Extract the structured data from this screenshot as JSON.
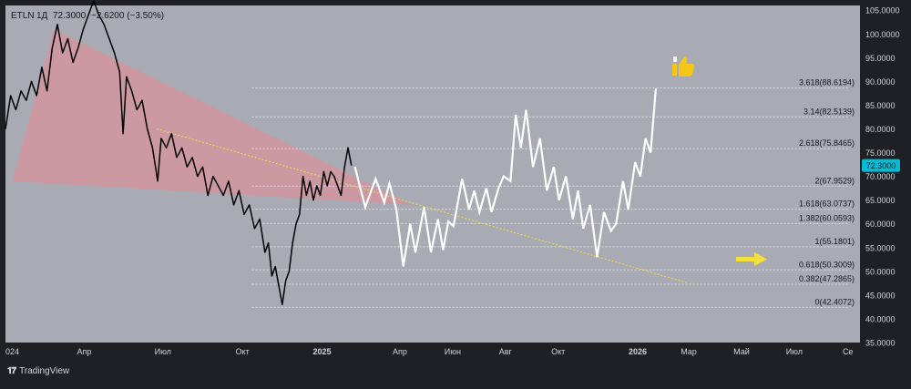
{
  "header": {
    "symbol": "ETLN",
    "interval": "1Д",
    "price": "72.3000",
    "change": "−2.6200 (−3.50%)"
  },
  "brand": {
    "name": "TradingView"
  },
  "colors": {
    "plot_bg": "#a8abb3",
    "frame_bg": "#1f2023",
    "price_line": "#000000",
    "projection_line": "#ffffff",
    "triangle_fill": "#e58c96",
    "trendline": "#f5dc3c",
    "fib_line": "#dcdee4",
    "price_badge": "#00bcd4",
    "arrow": "#f5e03a"
  },
  "icons": [
    "thumbs-up-icon",
    "right-arrow-icon",
    "tradingview-logo-icon"
  ],
  "chart_data": {
    "type": "line",
    "title": "",
    "ylim": [
      35,
      106
    ],
    "y_ticks": [
      "35.0000",
      "40.0000",
      "45.0000",
      "50.0000",
      "55.0000",
      "60.0000",
      "65.0000",
      "70.0000",
      "75.0000",
      "80.0000",
      "85.0000",
      "90.0000",
      "95.0000",
      "100.0000",
      "105.0000"
    ],
    "y_tick_values": [
      35,
      40,
      45,
      50,
      55,
      60,
      65,
      70,
      75,
      80,
      85,
      90,
      95,
      100,
      105
    ],
    "x_labels": [
      {
        "label": "024",
        "t": 0
      },
      {
        "label": "Апр",
        "t": 91
      },
      {
        "label": "Июл",
        "t": 182
      },
      {
        "label": "Окт",
        "t": 274
      },
      {
        "label": "2025",
        "t": 366
      },
      {
        "label": "Апр",
        "t": 456
      },
      {
        "label": "Июн",
        "t": 517
      },
      {
        "label": "Авг",
        "t": 578
      },
      {
        "label": "Окт",
        "t": 639
      },
      {
        "label": "2026",
        "t": 731
      },
      {
        "label": "Мар",
        "t": 790
      },
      {
        "label": "Май",
        "t": 851
      },
      {
        "label": "Июл",
        "t": 912
      },
      {
        "label": "Се",
        "t": 974
      }
    ],
    "current_price": {
      "label": "72.3000",
      "value": 72.3
    },
    "price_series": [
      [
        0,
        80.0
      ],
      [
        6,
        87.0
      ],
      [
        12,
        84.0
      ],
      [
        18,
        88.0
      ],
      [
        24,
        86.0
      ],
      [
        30,
        90.0
      ],
      [
        36,
        87.0
      ],
      [
        42,
        93.0
      ],
      [
        48,
        88.0
      ],
      [
        54,
        97.0
      ],
      [
        60,
        102.0
      ],
      [
        66,
        96.0
      ],
      [
        72,
        99.0
      ],
      [
        78,
        94.0
      ],
      [
        84,
        97.0
      ],
      [
        90,
        101.0
      ],
      [
        96,
        104.0
      ],
      [
        102,
        107.0
      ],
      [
        108,
        104.0
      ],
      [
        114,
        102.0
      ],
      [
        120,
        99.0
      ],
      [
        126,
        96.0
      ],
      [
        132,
        92.0
      ],
      [
        136,
        79.0
      ],
      [
        140,
        91.0
      ],
      [
        146,
        88.0
      ],
      [
        152,
        84.0
      ],
      [
        158,
        86.0
      ],
      [
        164,
        80.0
      ],
      [
        170,
        76.0
      ],
      [
        176,
        69.0
      ],
      [
        180,
        78.0
      ],
      [
        186,
        76.0
      ],
      [
        192,
        79.0
      ],
      [
        198,
        74.0
      ],
      [
        204,
        76.0
      ],
      [
        210,
        72.0
      ],
      [
        216,
        74.0
      ],
      [
        222,
        70.0
      ],
      [
        228,
        72.0
      ],
      [
        234,
        66.0
      ],
      [
        240,
        70.0
      ],
      [
        246,
        68.0
      ],
      [
        252,
        66.0
      ],
      [
        258,
        69.0
      ],
      [
        264,
        64.0
      ],
      [
        270,
        67.0
      ],
      [
        276,
        62.0
      ],
      [
        282,
        64.0
      ],
      [
        288,
        59.0
      ],
      [
        294,
        61.0
      ],
      [
        300,
        54.0
      ],
      [
        304,
        56.0
      ],
      [
        308,
        49.0
      ],
      [
        312,
        51.0
      ],
      [
        316,
        47.0
      ],
      [
        320,
        43.0
      ],
      [
        324,
        48.0
      ],
      [
        328,
        50.0
      ],
      [
        332,
        56.0
      ],
      [
        336,
        60.0
      ],
      [
        340,
        62.0
      ],
      [
        344,
        70.0
      ],
      [
        348,
        66.0
      ],
      [
        352,
        69.0
      ],
      [
        356,
        65.0
      ],
      [
        360,
        68.0
      ],
      [
        364,
        66.0
      ],
      [
        368,
        71.0
      ],
      [
        372,
        68.0
      ],
      [
        376,
        71.0
      ],
      [
        380,
        70.0
      ],
      [
        384,
        68.0
      ],
      [
        388,
        66.0
      ],
      [
        392,
        72.0
      ],
      [
        396,
        76.0
      ],
      [
        400,
        72.3
      ]
    ],
    "projection_series": [
      [
        404,
        72.0
      ],
      [
        416,
        63.5
      ],
      [
        428,
        69.5
      ],
      [
        438,
        64.5
      ],
      [
        444,
        68.5
      ],
      [
        452,
        63.0
      ],
      [
        460,
        51.0
      ],
      [
        468,
        60.0
      ],
      [
        474,
        54.0
      ],
      [
        484,
        63.5
      ],
      [
        492,
        54.0
      ],
      [
        500,
        61.0
      ],
      [
        506,
        54.5
      ],
      [
        512,
        60.5
      ],
      [
        518,
        59.5
      ],
      [
        528,
        69.5
      ],
      [
        536,
        63.0
      ],
      [
        542,
        67.0
      ],
      [
        548,
        62.5
      ],
      [
        556,
        67.5
      ],
      [
        562,
        62.5
      ],
      [
        570,
        67.5
      ],
      [
        576,
        70.0
      ],
      [
        584,
        69.0
      ],
      [
        590,
        83.0
      ],
      [
        596,
        76.0
      ],
      [
        602,
        84.0
      ],
      [
        610,
        72.0
      ],
      [
        618,
        78.0
      ],
      [
        626,
        67.0
      ],
      [
        634,
        72.0
      ],
      [
        640,
        65.0
      ],
      [
        648,
        70.0
      ],
      [
        656,
        61.0
      ],
      [
        662,
        67.0
      ],
      [
        668,
        59.0
      ],
      [
        676,
        64.0
      ],
      [
        684,
        53.0
      ],
      [
        692,
        62.5
      ],
      [
        700,
        58.5
      ],
      [
        706,
        60.0
      ],
      [
        714,
        69.0
      ],
      [
        720,
        63.0
      ],
      [
        728,
        73.0
      ],
      [
        734,
        70.0
      ],
      [
        740,
        78.0
      ],
      [
        746,
        75.0
      ],
      [
        752,
        88.5
      ]
    ],
    "fib_levels": [
      {
        "label": "3.618(88.6194)",
        "value": 88.6194
      },
      {
        "label": "3.14(82.5139)",
        "value": 82.5139
      },
      {
        "label": "2.618(75.8465)",
        "value": 75.8465
      },
      {
        "label": "2(67.9529)",
        "value": 67.9529
      },
      {
        "label": "1.618(63.0737)",
        "value": 63.0737
      },
      {
        "label": "1.382(60.0593)",
        "value": 60.0593
      },
      {
        "label": "1(55.1801)",
        "value": 55.1801
      },
      {
        "label": "0.618(50.3009)",
        "value": 50.3009
      },
      {
        "label": "0.382(47.2865)",
        "value": 47.2865
      },
      {
        "label": "0(42.4072)",
        "value": 42.4072
      }
    ],
    "triangle": [
      [
        56,
        101.0
      ],
      [
        470,
        64.0
      ],
      [
        8,
        69.0
      ]
    ],
    "trendline": [
      [
        175,
        80.0
      ],
      [
        790,
        47.5
      ]
    ],
    "fib_x_range": [
      285,
      975
    ]
  }
}
